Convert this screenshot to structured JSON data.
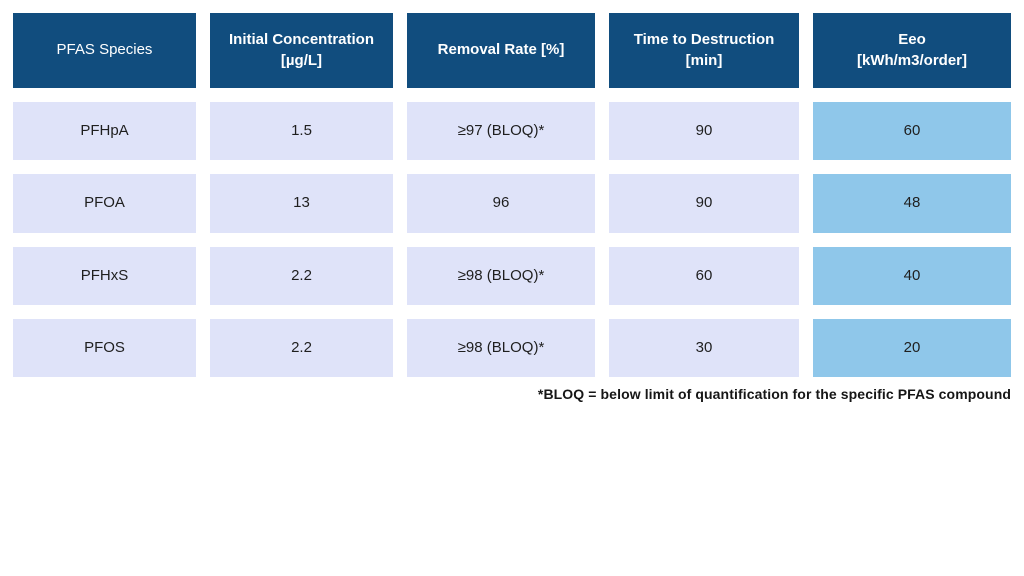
{
  "chart_data": {
    "type": "table",
    "columns": [
      "PFAS Species",
      "Initial Concentration [µg/L]",
      "Removal Rate [%]",
      "Time to Destruction [min]",
      "Eeo [kWh/m3/order]"
    ],
    "rows": [
      [
        "PFHpA",
        "1.5",
        "≥97 (BLOQ)*",
        "90",
        "60"
      ],
      [
        "PFOA",
        "13",
        "96",
        "90",
        "48"
      ],
      [
        "PFHxS",
        "2.2",
        "≥98 (BLOQ)*",
        "60",
        "40"
      ],
      [
        "PFOS",
        "2.2",
        "≥98 (BLOQ)*",
        "30",
        "20"
      ]
    ],
    "footnote": "*BLOQ = below limit of quantification for the specific PFAS compound"
  },
  "ui": {
    "header_lines": [
      {
        "line1": "PFAS Species",
        "line2": ""
      },
      {
        "line1": "Initial Concentration",
        "line2": "[µg/L]"
      },
      {
        "line1": "Removal Rate [%]",
        "line2": ""
      },
      {
        "line1": "Time to Destruction",
        "line2": "[min]"
      },
      {
        "line1": "Eeo",
        "line2": "[kWh/m3/order]"
      }
    ]
  },
  "colors": {
    "header_bg": "#114d7e",
    "header_text": "#ffffff",
    "row_bg": "#dfe3f9",
    "eeo_bg": "#8fc7ea",
    "body_text": "#1f1f1f",
    "page_bg": "#ffffff"
  }
}
